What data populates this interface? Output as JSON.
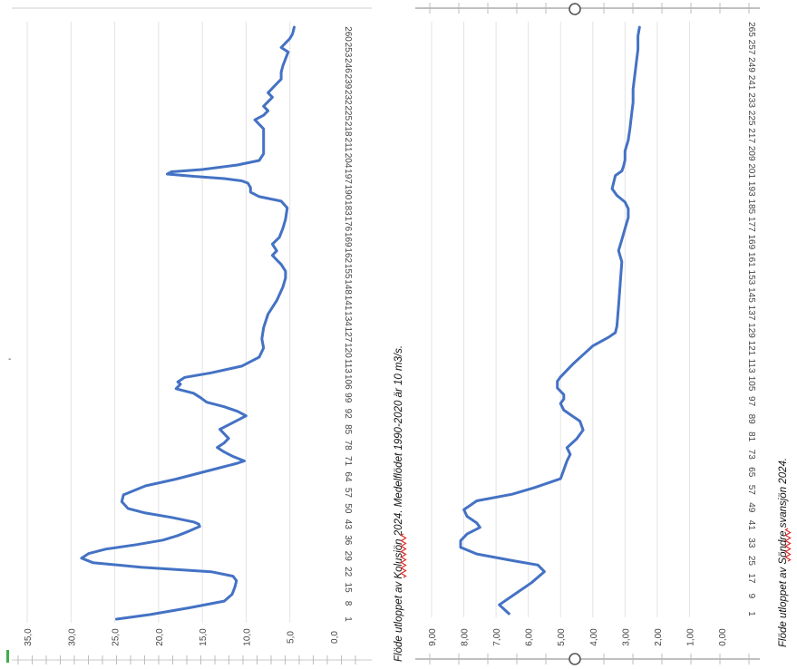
{
  "chart_data": [
    {
      "type": "line",
      "caption": {
        "prefix": "Flöde utloppet av ",
        "squiggle": "Kolusjön",
        "suffix": " 2024. Medelflödet 1990-2020 är 10 m3/s."
      },
      "ytick_labels": [
        "0,0",
        "5,0",
        "10,0",
        "15,0",
        "20,0",
        "25,0",
        "30,0",
        "35,0"
      ],
      "ylim": [
        0,
        35
      ],
      "grid": true,
      "xtick_labels": [
        "1",
        "8",
        "15",
        "22",
        "29",
        "36",
        "43",
        "50",
        "57",
        "64",
        "71",
        "78",
        "85",
        "92",
        "99",
        "106",
        "113",
        "120",
        "127",
        "134",
        "141",
        "148",
        "155",
        "162",
        "169",
        "176",
        "183",
        "190",
        "197",
        "204",
        "211",
        "218",
        "225",
        "232",
        "239",
        "246",
        "253",
        "260"
      ],
      "xlim": [
        1,
        263
      ],
      "color": "#4472C4",
      "series": [
        {
          "x": [
            1,
            3,
            6,
            9,
            12,
            15,
            18,
            20,
            22,
            24,
            26,
            28,
            30,
            32,
            34,
            36,
            38,
            40,
            42,
            43,
            44,
            46,
            48,
            50,
            53,
            56,
            60,
            63,
            66,
            68,
            70,
            71,
            73,
            75,
            77,
            79,
            81,
            83,
            85,
            87,
            89,
            91,
            93,
            95,
            97,
            99,
            101,
            103,
            105,
            106,
            108,
            110,
            113,
            117,
            121,
            125,
            130,
            136,
            142,
            148,
            152,
            155,
            158,
            160,
            162,
            164,
            167,
            170,
            174,
            178,
            183,
            186,
            188,
            190,
            192,
            194,
            195,
            196,
            197,
            198,
            199,
            200,
            202,
            204,
            207,
            211,
            215,
            218,
            220,
            222,
            224,
            226,
            228,
            230,
            232,
            234,
            236,
            238,
            240,
            243,
            246,
            249,
            252,
            254,
            256,
            258,
            260,
            263
          ],
          "y": [
            24.8,
            21,
            16.5,
            12.5,
            11.6,
            11.3,
            11.1,
            11.5,
            14,
            22,
            27.5,
            28.8,
            28,
            26,
            22.5,
            19.5,
            17.8,
            16.5,
            15.3,
            15.4,
            16,
            18.5,
            21.5,
            23.5,
            24.2,
            24,
            21.5,
            18,
            15,
            13,
            11,
            10.2,
            11.5,
            12.5,
            13.3,
            12.5,
            12,
            12.5,
            13,
            12,
            11,
            10,
            11,
            12.5,
            14.5,
            15.2,
            16,
            18,
            17.5,
            17.8,
            17,
            14,
            10.5,
            8.5,
            8,
            8.2,
            8,
            7.5,
            6.5,
            5.8,
            5.5,
            5.5,
            6,
            6.5,
            7,
            6.5,
            7,
            6.2,
            5.8,
            5.5,
            5.3,
            6,
            8.5,
            9.5,
            9.5,
            9.8,
            10.5,
            12.5,
            16,
            19,
            18.5,
            15,
            11,
            8.5,
            8,
            8,
            8,
            8,
            8.5,
            9,
            8,
            7.5,
            8,
            7.5,
            7,
            7.5,
            7,
            6.5,
            6,
            6,
            5.8,
            5.5,
            5.2,
            6,
            5.5,
            5,
            4.7,
            4.5
          ]
        }
      ]
    },
    {
      "type": "line",
      "caption": {
        "prefix": "Flöde utloppet av ",
        "squiggle": "Söndre",
        "suffix": " svansjön 2024."
      },
      "ytick_labels": [
        "0,00",
        "1,00",
        "2,00",
        "3,00",
        "4,00",
        "5,00",
        "6,00",
        "7,00",
        "8,00",
        "9,00"
      ],
      "ylim": [
        0,
        9
      ],
      "grid": true,
      "xtick_labels": [
        "1",
        "9",
        "17",
        "25",
        "33",
        "41",
        "49",
        "57",
        "65",
        "73",
        "81",
        "89",
        "97",
        "105",
        "113",
        "121",
        "129",
        "137",
        "145",
        "153",
        "161",
        "169",
        "177",
        "185",
        "193",
        "201",
        "209",
        "217",
        "225",
        "233",
        "241",
        "249",
        "257",
        "265"
      ],
      "xlim": [
        1,
        266
      ],
      "color": "#4472C4",
      "series": [
        {
          "x": [
            1,
            5,
            10,
            15,
            20,
            23,
            25,
            28,
            31,
            34,
            37,
            40,
            42,
            45,
            48,
            52,
            55,
            58,
            62,
            66,
            70,
            73,
            76,
            80,
            84,
            88,
            90,
            93,
            96,
            98,
            100,
            103,
            106,
            108,
            111,
            114,
            118,
            122,
            126,
            128,
            131,
            140,
            150,
            160,
            165,
            170,
            175,
            180,
            184,
            187,
            190,
            193,
            196,
            199,
            201,
            203,
            206,
            210,
            215,
            220,
            226,
            232,
            238,
            244,
            250,
            256,
            262,
            266
          ],
          "y": [
            6.6,
            6.9,
            6.4,
            5.9,
            5.5,
            5.7,
            6.5,
            7.6,
            8.1,
            8.1,
            7.9,
            7.5,
            7.6,
            7.9,
            8.0,
            7.6,
            6.5,
            5.8,
            5.0,
            4.9,
            4.8,
            4.7,
            4.8,
            4.5,
            4.3,
            4.4,
            4.6,
            4.9,
            5.0,
            4.9,
            4.9,
            5.1,
            5.1,
            5.0,
            4.8,
            4.6,
            4.3,
            4.0,
            3.5,
            3.3,
            3.25,
            3.2,
            3.15,
            3.1,
            3.2,
            3.1,
            3.0,
            2.9,
            2.9,
            3.0,
            3.25,
            3.4,
            3.35,
            3.3,
            3.1,
            3.05,
            3.0,
            3.0,
            2.9,
            2.85,
            2.8,
            2.75,
            2.75,
            2.7,
            2.65,
            2.6,
            2.6,
            2.55
          ]
        }
      ]
    }
  ]
}
